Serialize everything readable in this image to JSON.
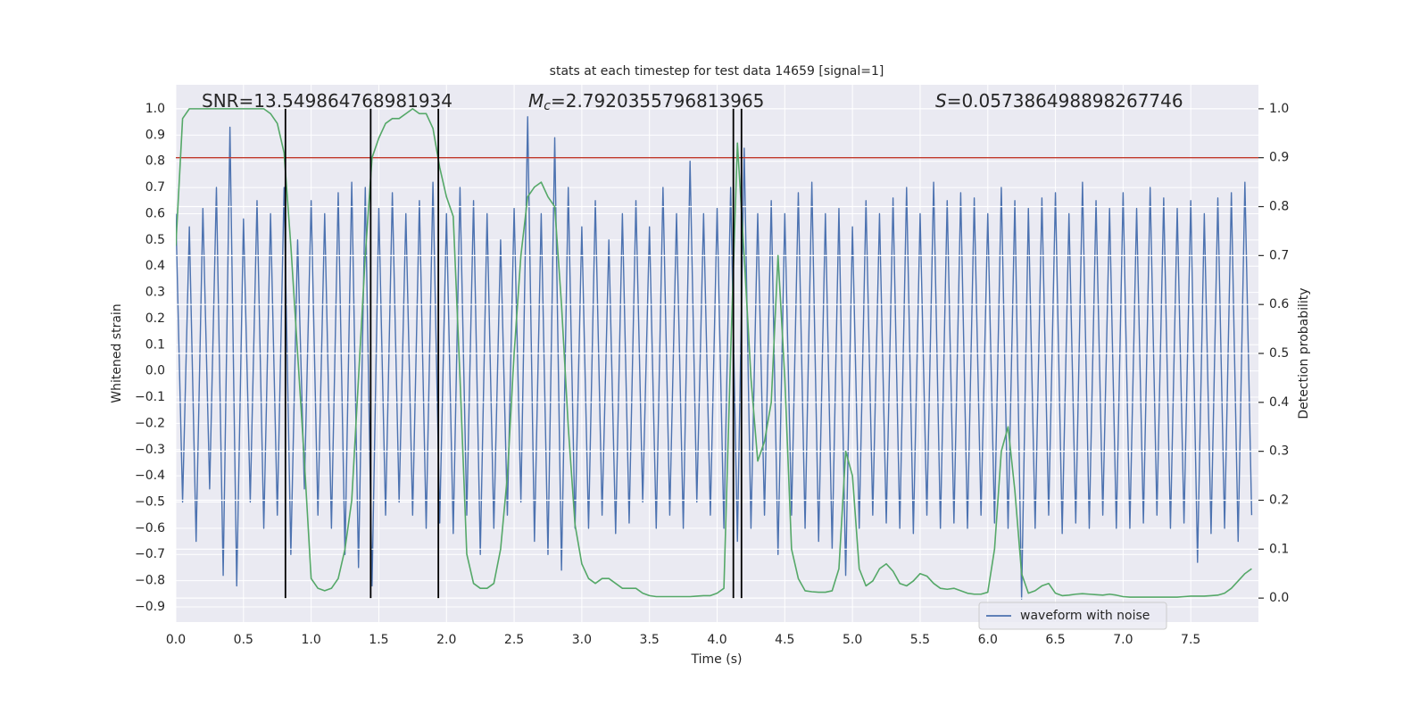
{
  "chart_data": {
    "type": "line",
    "title": "stats at each timestep for test data 14659 [signal=1]",
    "xlabel": "Time (s)",
    "ylabel": "Whitened strain",
    "y2label": "Detection probability",
    "xlim": [
      0,
      8
    ],
    "ylim": [
      -0.958,
      1.092
    ],
    "y2lim": [
      -0.049,
      1.049
    ],
    "xticks": [
      {
        "value": 0,
        "label": "0.0"
      },
      {
        "value": 0.5,
        "label": "0.5"
      },
      {
        "value": 1,
        "label": "1.0"
      },
      {
        "value": 1.5,
        "label": "1.5"
      },
      {
        "value": 2,
        "label": "2.0"
      },
      {
        "value": 2.5,
        "label": "2.5"
      },
      {
        "value": 3,
        "label": "3.0"
      },
      {
        "value": 3.5,
        "label": "3.5"
      },
      {
        "value": 4,
        "label": "4.0"
      },
      {
        "value": 4.5,
        "label": "4.5"
      },
      {
        "value": 5,
        "label": "5.0"
      },
      {
        "value": 5.5,
        "label": "5.5"
      },
      {
        "value": 6,
        "label": "6.0"
      },
      {
        "value": 6.5,
        "label": "6.5"
      },
      {
        "value": 7,
        "label": "7.0"
      },
      {
        "value": 7.5,
        "label": "7.5"
      }
    ],
    "yticks": [
      {
        "value": -0.9,
        "label": "−0.9"
      },
      {
        "value": -0.8,
        "label": "−0.8"
      },
      {
        "value": -0.7,
        "label": "−0.7"
      },
      {
        "value": -0.6,
        "label": "−0.6"
      },
      {
        "value": -0.5,
        "label": "−0.5"
      },
      {
        "value": -0.4,
        "label": "−0.4"
      },
      {
        "value": -0.3,
        "label": "−0.3"
      },
      {
        "value": -0.2,
        "label": "−0.2"
      },
      {
        "value": -0.1,
        "label": "−0.1"
      },
      {
        "value": 0,
        "label": "0.0"
      },
      {
        "value": 0.1,
        "label": "0.1"
      },
      {
        "value": 0.2,
        "label": "0.2"
      },
      {
        "value": 0.3,
        "label": "0.3"
      },
      {
        "value": 0.4,
        "label": "0.4"
      },
      {
        "value": 0.5,
        "label": "0.5"
      },
      {
        "value": 0.6,
        "label": "0.6"
      },
      {
        "value": 0.7,
        "label": "0.7"
      },
      {
        "value": 0.8,
        "label": "0.8"
      },
      {
        "value": 0.9,
        "label": "0.9"
      },
      {
        "value": 1,
        "label": "1.0"
      }
    ],
    "y2ticks": [
      {
        "value": 0,
        "label": "0.0"
      },
      {
        "value": 0.1,
        "label": "0.1"
      },
      {
        "value": 0.2,
        "label": "0.2"
      },
      {
        "value": 0.3,
        "label": "0.3"
      },
      {
        "value": 0.4,
        "label": "0.4"
      },
      {
        "value": 0.5,
        "label": "0.5"
      },
      {
        "value": 0.6,
        "label": "0.6"
      },
      {
        "value": 0.7,
        "label": "0.7"
      },
      {
        "value": 0.8,
        "label": "0.8"
      },
      {
        "value": 0.9,
        "label": "0.9"
      },
      {
        "value": 1,
        "label": "1.0"
      }
    ],
    "grid": true,
    "legend": "lower right",
    "annotations": [
      [
        "SNR=13.549864768981934"
      ],
      [
        "M",
        "c",
        "=2.7920355796813965"
      ],
      [
        "S",
        "=0.057386498898267746"
      ]
    ],
    "threshold": {
      "value": 0.9,
      "axis": "y2",
      "color": "#c0392b"
    },
    "vlines": {
      "x": [
        0.81,
        1.44,
        1.94,
        4.12,
        4.18
      ],
      "y2range": [
        0,
        1
      ],
      "color": "#000000"
    },
    "x": [
      0,
      0.05,
      0.1,
      0.15,
      0.2,
      0.25,
      0.3,
      0.35,
      0.4,
      0.45,
      0.5,
      0.55,
      0.6,
      0.65,
      0.7,
      0.75,
      0.8,
      0.85,
      0.9,
      0.95,
      1,
      1.05,
      1.1,
      1.15,
      1.2,
      1.25,
      1.3,
      1.35,
      1.4,
      1.45,
      1.5,
      1.55,
      1.6,
      1.65,
      1.7,
      1.75,
      1.8,
      1.85,
      1.9,
      1.95,
      2,
      2.05,
      2.1,
      2.15,
      2.2,
      2.25,
      2.3,
      2.35,
      2.4,
      2.45,
      2.5,
      2.55,
      2.6,
      2.65,
      2.7,
      2.75,
      2.8,
      2.85,
      2.9,
      2.95,
      3,
      3.05,
      3.1,
      3.15,
      3.2,
      3.25,
      3.3,
      3.35,
      3.4,
      3.45,
      3.5,
      3.55,
      3.6,
      3.65,
      3.7,
      3.75,
      3.8,
      3.85,
      3.9,
      3.95,
      4,
      4.05,
      4.1,
      4.15,
      4.2,
      4.25,
      4.3,
      4.35,
      4.4,
      4.45,
      4.5,
      4.55,
      4.6,
      4.65,
      4.7,
      4.75,
      4.8,
      4.85,
      4.9,
      4.95,
      5,
      5.05,
      5.1,
      5.15,
      5.2,
      5.25,
      5.3,
      5.35,
      5.4,
      5.45,
      5.5,
      5.55,
      5.6,
      5.65,
      5.7,
      5.75,
      5.8,
      5.85,
      5.9,
      5.95,
      6,
      6.05,
      6.1,
      6.15,
      6.2,
      6.25,
      6.3,
      6.35,
      6.4,
      6.45,
      6.5,
      6.55,
      6.6,
      6.65,
      6.7,
      6.75,
      6.8,
      6.85,
      6.9,
      6.95,
      7,
      7.05,
      7.1,
      7.15,
      7.2,
      7.25,
      7.3,
      7.35,
      7.4,
      7.45,
      7.5,
      7.55,
      7.6,
      7.65,
      7.7,
      7.75,
      7.8,
      7.85,
      7.9,
      7.95
    ],
    "series": [
      {
        "name": "waveform with noise",
        "color": "#4c72b0",
        "values": [
          0.6,
          -0.5,
          0.55,
          -0.65,
          0.62,
          -0.45,
          0.7,
          -0.78,
          0.93,
          -0.82,
          0.58,
          -0.5,
          0.65,
          -0.6,
          0.6,
          -0.55,
          0.7,
          -0.7,
          0.5,
          -0.45,
          0.65,
          -0.55,
          0.6,
          -0.6,
          0.68,
          -0.7,
          0.72,
          -0.75,
          0.7,
          -0.82,
          0.62,
          -0.55,
          0.68,
          -0.5,
          0.6,
          -0.55,
          0.65,
          -0.6,
          0.72,
          -0.58,
          0.6,
          -0.62,
          0.7,
          -0.55,
          0.65,
          -0.7,
          0.6,
          -0.6,
          0.5,
          -0.55,
          0.62,
          -0.5,
          0.97,
          -0.65,
          0.6,
          -0.7,
          0.89,
          -0.76,
          0.7,
          -0.6,
          0.55,
          -0.6,
          0.65,
          -0.55,
          0.5,
          -0.62,
          0.6,
          -0.58,
          0.65,
          -0.5,
          0.55,
          -0.6,
          0.7,
          -0.55,
          0.6,
          -0.6,
          0.8,
          -0.5,
          0.6,
          -0.55,
          0.62,
          -0.6,
          0.7,
          -0.65,
          0.85,
          -0.6,
          0.6,
          -0.55,
          0.65,
          -0.7,
          0.6,
          -0.55,
          0.68,
          -0.6,
          0.72,
          -0.65,
          0.6,
          -0.68,
          0.62,
          -0.78,
          0.55,
          -0.6,
          0.65,
          -0.55,
          0.6,
          -0.58,
          0.66,
          -0.6,
          0.7,
          -0.62,
          0.6,
          -0.55,
          0.72,
          -0.6,
          0.65,
          -0.58,
          0.68,
          -0.6,
          0.66,
          -0.55,
          0.6,
          -0.58,
          0.7,
          -0.6,
          0.65,
          -0.87,
          0.62,
          -0.6,
          0.66,
          -0.55,
          0.68,
          -0.62,
          0.6,
          -0.58,
          0.72,
          -0.6,
          0.65,
          -0.55,
          0.62,
          -0.6,
          0.68,
          -0.6,
          0.62,
          -0.58,
          0.7,
          -0.55,
          0.66,
          -0.6,
          0.62,
          -0.58,
          0.65,
          -0.73,
          0.6,
          -0.62,
          0.66,
          -0.6,
          0.68,
          -0.65,
          0.72,
          -0.55
        ]
      },
      {
        "color": "#55a868",
        "axis": "y2",
        "values": [
          0.72,
          0.98,
          1.0,
          1.0,
          1.0,
          1.0,
          1.0,
          1.0,
          1.0,
          1.0,
          1.0,
          1.0,
          1.0,
          1.0,
          0.99,
          0.97,
          0.91,
          0.72,
          0.5,
          0.28,
          0.04,
          0.02,
          0.015,
          0.02,
          0.04,
          0.1,
          0.2,
          0.45,
          0.7,
          0.9,
          0.94,
          0.97,
          0.98,
          0.98,
          0.99,
          1.0,
          0.99,
          0.99,
          0.96,
          0.88,
          0.82,
          0.78,
          0.45,
          0.09,
          0.03,
          0.02,
          0.02,
          0.03,
          0.1,
          0.25,
          0.5,
          0.7,
          0.82,
          0.84,
          0.85,
          0.82,
          0.8,
          0.6,
          0.35,
          0.15,
          0.07,
          0.04,
          0.03,
          0.04,
          0.04,
          0.03,
          0.02,
          0.02,
          0.02,
          0.01,
          0.005,
          0.003,
          0.003,
          0.003,
          0.003,
          0.003,
          0.003,
          0.004,
          0.005,
          0.005,
          0.01,
          0.02,
          0.5,
          0.93,
          0.7,
          0.45,
          0.28,
          0.32,
          0.4,
          0.7,
          0.45,
          0.1,
          0.04,
          0.015,
          0.013,
          0.012,
          0.012,
          0.015,
          0.06,
          0.3,
          0.25,
          0.06,
          0.025,
          0.035,
          0.06,
          0.07,
          0.055,
          0.03,
          0.025,
          0.035,
          0.05,
          0.045,
          0.03,
          0.02,
          0.018,
          0.02,
          0.015,
          0.01,
          0.008,
          0.008,
          0.012,
          0.1,
          0.3,
          0.35,
          0.22,
          0.05,
          0.01,
          0.015,
          0.025,
          0.03,
          0.01,
          0.005,
          0.006,
          0.008,
          0.009,
          0.008,
          0.007,
          0.006,
          0.008,
          0.006,
          0.003,
          0.002,
          0.002,
          0.002,
          0.002,
          0.002,
          0.002,
          0.002,
          0.002,
          0.003,
          0.004,
          0.004,
          0.004,
          0.005,
          0.006,
          0.01,
          0.02,
          0.035,
          0.05,
          0.06
        ]
      }
    ]
  }
}
